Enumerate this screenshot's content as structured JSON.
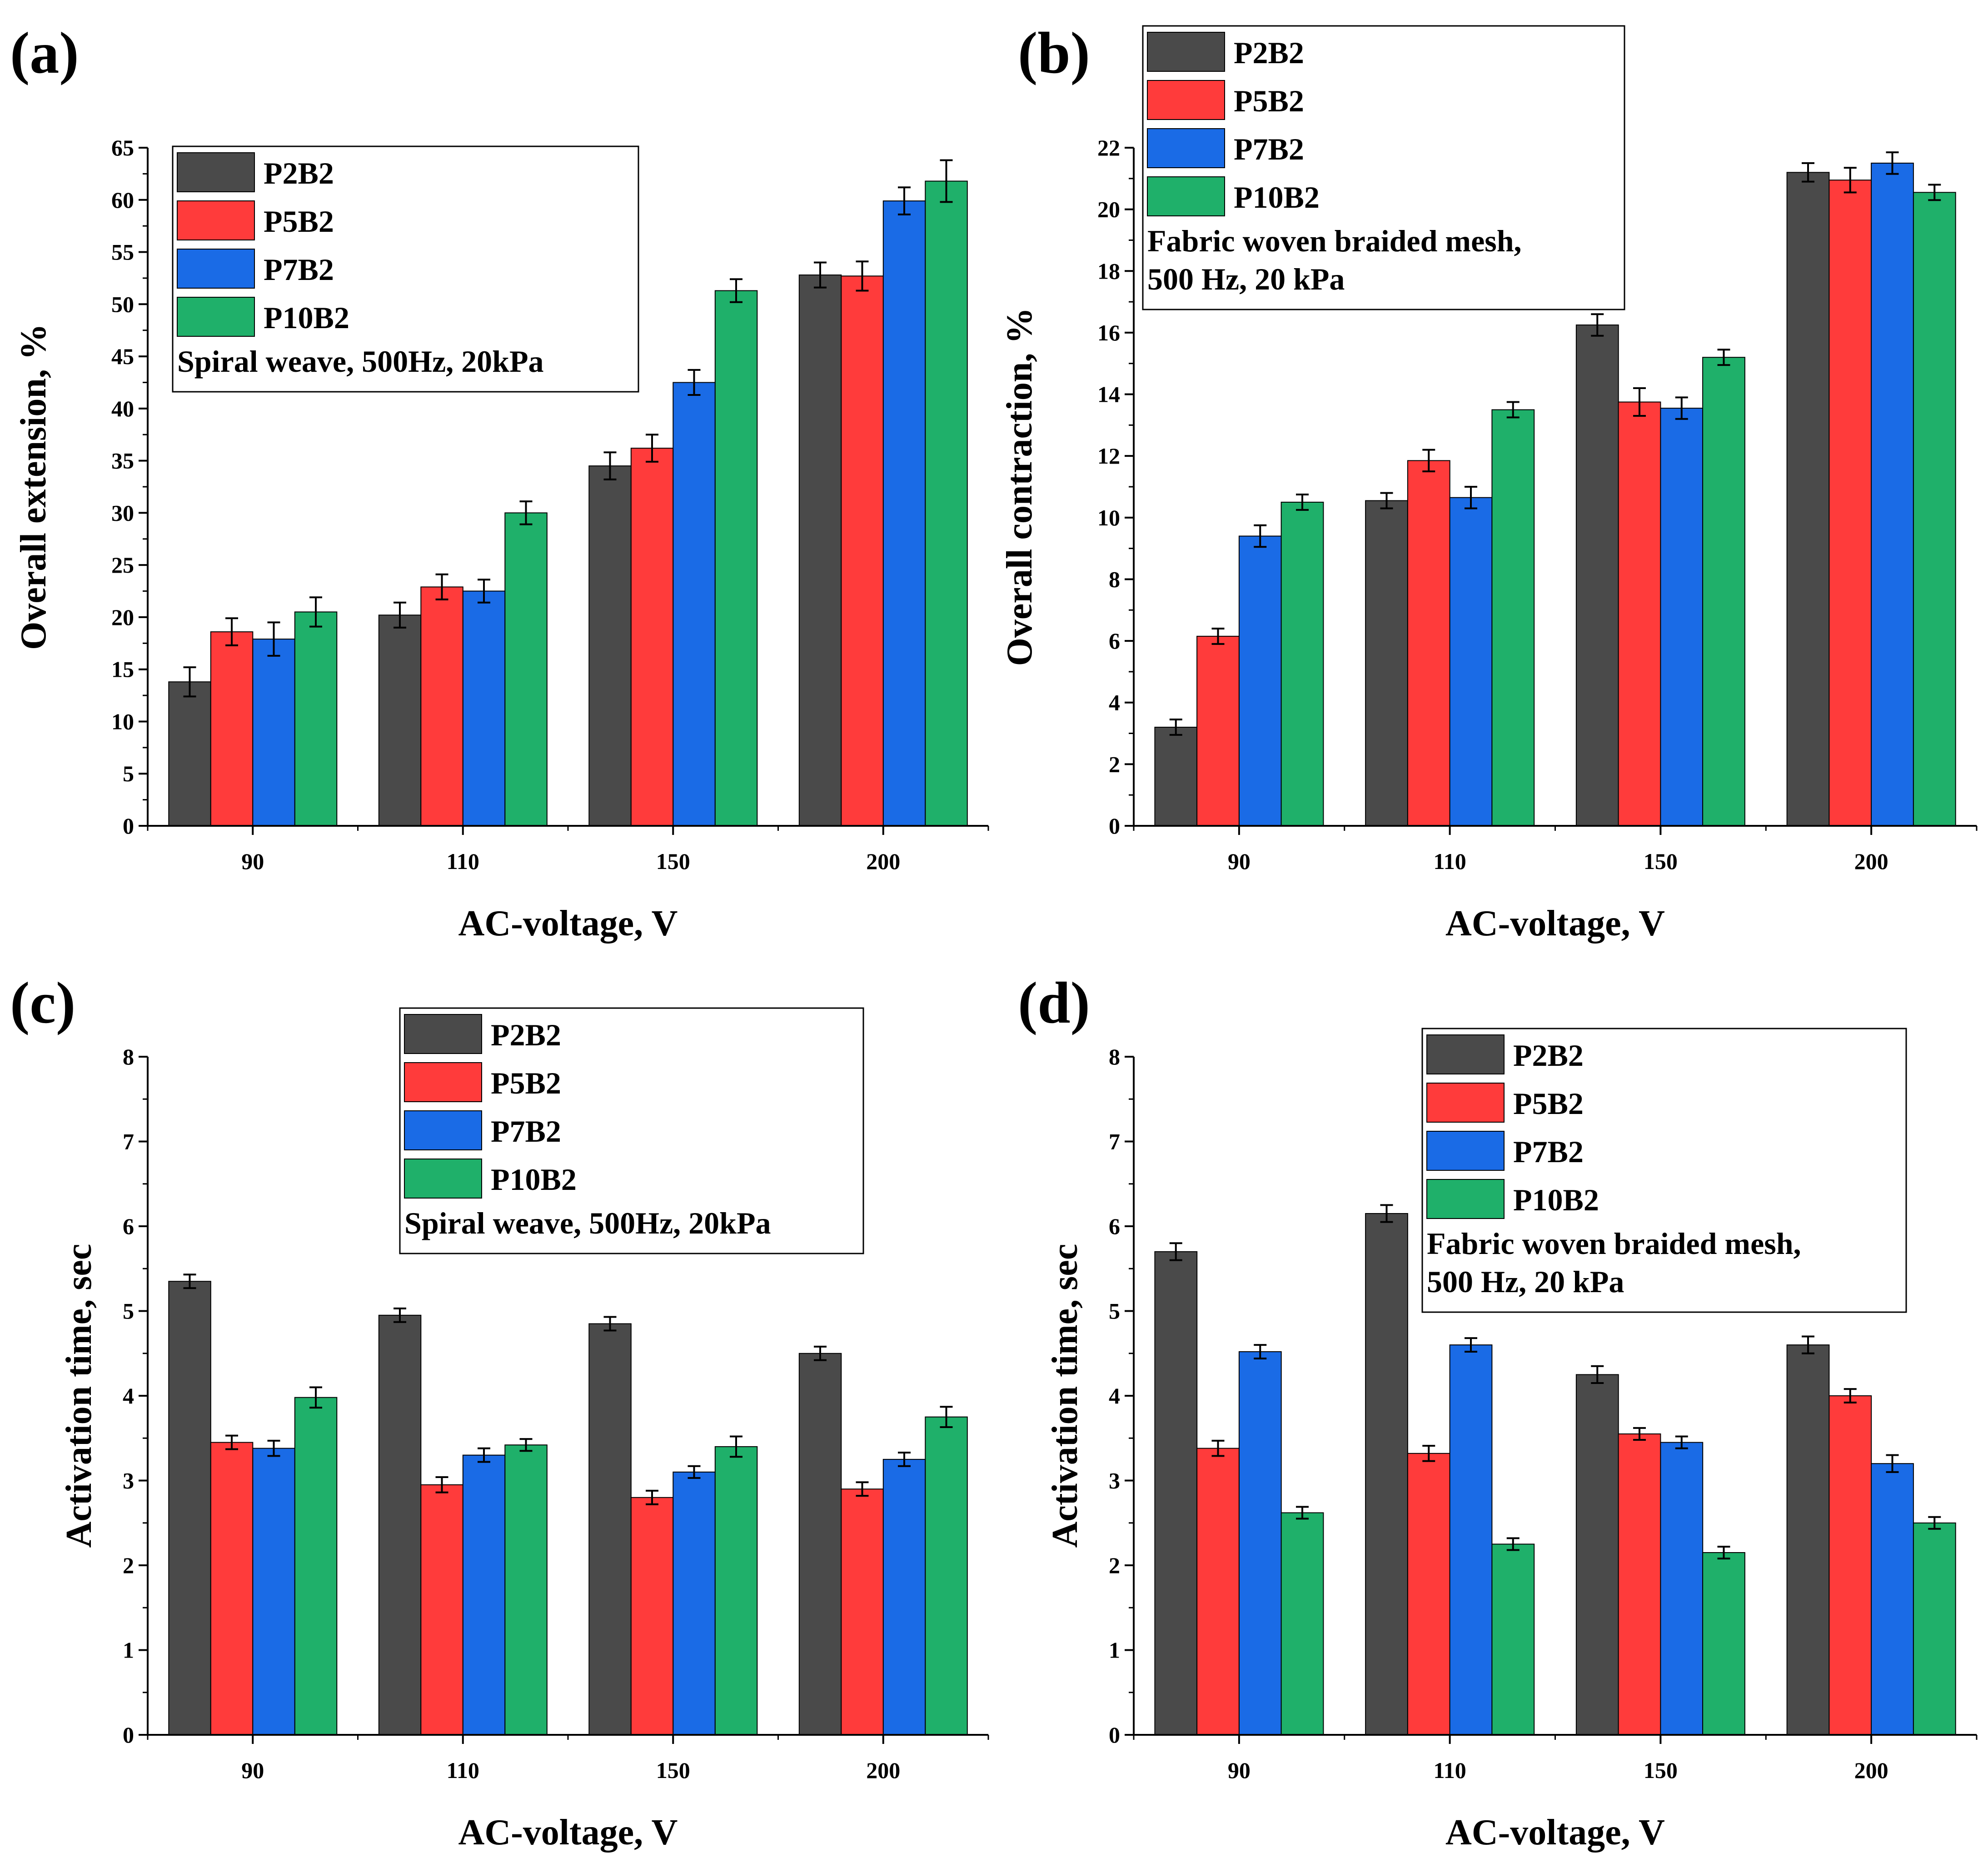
{
  "colors": {
    "P2B2": "#4a4a4a",
    "P5B2": "#ff3b3b",
    "P7B2": "#1a6be6",
    "P10B2": "#1fb06a"
  },
  "chart_data": [
    {
      "type": "bar",
      "panel_label": "(a)",
      "title": "",
      "xlabel": "AC-voltage, V",
      "ylabel": "Overall extension, %",
      "categories": [
        "90",
        "110",
        "150",
        "200"
      ],
      "ylim": [
        0,
        65
      ],
      "yticks": [
        0,
        5,
        10,
        15,
        20,
        25,
        30,
        35,
        40,
        45,
        50,
        55,
        60,
        65
      ],
      "series": [
        {
          "name": "P2B2",
          "values": [
            13.8,
            20.2,
            34.5,
            52.8
          ],
          "errors": [
            1.4,
            1.2,
            1.3,
            1.2
          ]
        },
        {
          "name": "P5B2",
          "values": [
            18.6,
            22.9,
            36.2,
            52.7
          ],
          "errors": [
            1.3,
            1.2,
            1.3,
            1.4
          ]
        },
        {
          "name": "P7B2",
          "values": [
            17.9,
            22.5,
            42.5,
            59.9
          ],
          "errors": [
            1.6,
            1.1,
            1.2,
            1.3
          ]
        },
        {
          "name": "P10B2",
          "values": [
            20.5,
            30.0,
            51.3,
            61.8
          ],
          "errors": [
            1.4,
            1.1,
            1.1,
            2.0
          ]
        }
      ],
      "legend_note": [
        "Spiral weave, 500Hz, 20kPa"
      ],
      "legend_position": "top-left"
    },
    {
      "type": "bar",
      "panel_label": "(b)",
      "title": "",
      "xlabel": "AC-voltage, V",
      "ylabel": "Overall contraction, %",
      "categories": [
        "90",
        "110",
        "150",
        "200"
      ],
      "ylim": [
        0,
        22
      ],
      "yticks": [
        0,
        2,
        4,
        6,
        8,
        10,
        12,
        14,
        16,
        18,
        20,
        22
      ],
      "series": [
        {
          "name": "P2B2",
          "values": [
            3.2,
            10.55,
            16.25,
            21.2
          ],
          "errors": [
            0.25,
            0.25,
            0.35,
            0.3
          ]
        },
        {
          "name": "P5B2",
          "values": [
            6.15,
            11.85,
            13.75,
            20.95
          ],
          "errors": [
            0.25,
            0.35,
            0.45,
            0.4
          ]
        },
        {
          "name": "P7B2",
          "values": [
            9.4,
            10.65,
            13.55,
            21.5
          ],
          "errors": [
            0.35,
            0.35,
            0.35,
            0.35
          ]
        },
        {
          "name": "P10B2",
          "values": [
            10.5,
            13.5,
            15.2,
            20.55
          ],
          "errors": [
            0.25,
            0.25,
            0.25,
            0.25
          ]
        }
      ],
      "legend_note": [
        "Fabric woven braided mesh,",
        "500 Hz, 20 kPa"
      ],
      "legend_position": "top-left"
    },
    {
      "type": "bar",
      "panel_label": "(c)",
      "title": "",
      "xlabel": "AC-voltage, V",
      "ylabel": "Activation time, sec",
      "categories": [
        "90",
        "110",
        "150",
        "200"
      ],
      "ylim": [
        0,
        8
      ],
      "yticks": [
        0,
        1,
        2,
        3,
        4,
        5,
        6,
        7,
        8
      ],
      "series": [
        {
          "name": "P2B2",
          "values": [
            5.35,
            4.95,
            4.85,
            4.5
          ],
          "errors": [
            0.08,
            0.08,
            0.08,
            0.08
          ]
        },
        {
          "name": "P5B2",
          "values": [
            3.45,
            2.95,
            2.8,
            2.9
          ],
          "errors": [
            0.08,
            0.09,
            0.08,
            0.08
          ]
        },
        {
          "name": "P7B2",
          "values": [
            3.38,
            3.3,
            3.1,
            3.25
          ],
          "errors": [
            0.09,
            0.08,
            0.07,
            0.08
          ]
        },
        {
          "name": "P10B2",
          "values": [
            3.98,
            3.42,
            3.4,
            3.75
          ],
          "errors": [
            0.12,
            0.07,
            0.12,
            0.12
          ]
        }
      ],
      "legend_note": [
        "Spiral weave, 500Hz, 20kPa"
      ],
      "legend_position": "top-right"
    },
    {
      "type": "bar",
      "panel_label": "(d)",
      "title": "",
      "xlabel": "AC-voltage, V",
      "ylabel": "Activation time, sec",
      "categories": [
        "90",
        "110",
        "150",
        "200"
      ],
      "ylim": [
        0,
        8
      ],
      "yticks": [
        0,
        1,
        2,
        3,
        4,
        5,
        6,
        7,
        8
      ],
      "series": [
        {
          "name": "P2B2",
          "values": [
            5.7,
            6.15,
            4.25,
            4.6
          ],
          "errors": [
            0.1,
            0.1,
            0.1,
            0.1
          ]
        },
        {
          "name": "P5B2",
          "values": [
            3.38,
            3.32,
            3.55,
            4.0
          ],
          "errors": [
            0.09,
            0.09,
            0.07,
            0.08
          ]
        },
        {
          "name": "P7B2",
          "values": [
            4.52,
            4.6,
            3.45,
            3.2
          ],
          "errors": [
            0.08,
            0.08,
            0.07,
            0.1
          ]
        },
        {
          "name": "P10B2",
          "values": [
            2.62,
            2.25,
            2.15,
            2.5
          ],
          "errors": [
            0.07,
            0.07,
            0.07,
            0.07
          ]
        }
      ],
      "legend_note": [
        "Fabric woven braided mesh,",
        "500 Hz, 20 kPa"
      ],
      "legend_position": "top-right"
    }
  ]
}
